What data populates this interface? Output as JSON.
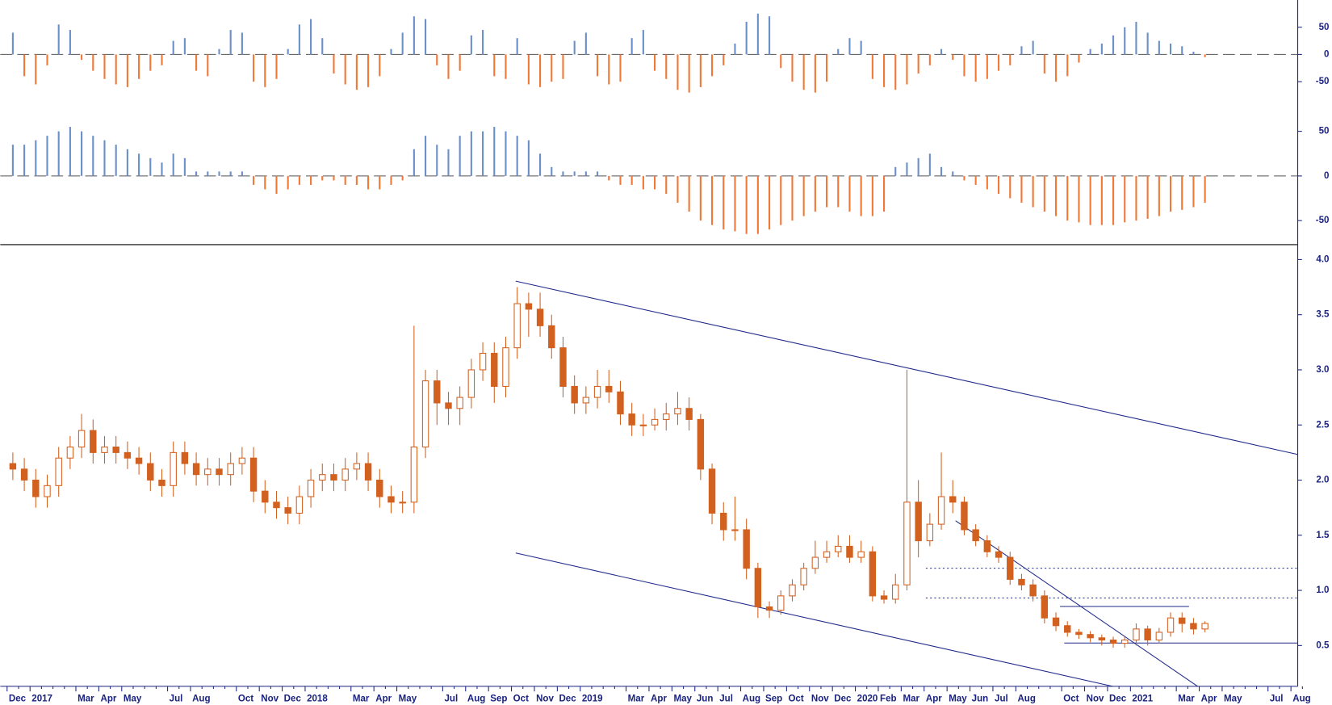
{
  "chart_data": [
    {
      "type": "candlestick",
      "color": "#d2601e",
      "categories": [
        "Dec",
        null,
        "2017",
        null,
        null,
        null,
        "Mar",
        null,
        "Apr",
        null,
        "May",
        null,
        null,
        null,
        "Jul",
        null,
        "Aug",
        null,
        null,
        null,
        "Oct",
        null,
        "Nov",
        null,
        "Dec",
        null,
        "2018",
        null,
        null,
        null,
        "Mar",
        null,
        "Apr",
        null,
        "May",
        null,
        null,
        null,
        "Jul",
        null,
        "Aug",
        null,
        "Sep",
        null,
        "Oct",
        null,
        "Nov",
        null,
        "Dec",
        null,
        "2019",
        null,
        null,
        null,
        "Mar",
        null,
        "Apr",
        null,
        "May",
        null,
        "Jun",
        null,
        "Jul",
        null,
        "Aug",
        null,
        "Sep",
        null,
        "Oct",
        null,
        "Nov",
        null,
        "Dec",
        null,
        "2020",
        null,
        "Feb",
        null,
        "Mar",
        null,
        "Apr",
        null,
        "May",
        null,
        "Jun",
        null,
        "Jul",
        null,
        "Aug",
        null,
        null,
        null,
        "Oct",
        null,
        "Nov",
        null,
        "Dec",
        null,
        "2021",
        null,
        null,
        null,
        "Mar",
        null,
        "Apr",
        null,
        "May",
        null,
        null,
        null,
        "Jul",
        null,
        "Aug",
        null
      ],
      "open": [
        2.15,
        2.1,
        2.0,
        1.85,
        1.95,
        2.2,
        2.3,
        2.45,
        2.25,
        2.3,
        2.25,
        2.2,
        2.15,
        2.0,
        1.95,
        2.25,
        2.15,
        2.05,
        2.1,
        2.05,
        2.15,
        2.2,
        1.9,
        1.8,
        1.75,
        1.7,
        1.85,
        2.0,
        2.05,
        2.0,
        2.1,
        2.15,
        2.0,
        1.85,
        1.8,
        1.8,
        2.3,
        2.9,
        2.7,
        2.65,
        2.75,
        3.0,
        3.15,
        2.85,
        3.2,
        3.6,
        3.55,
        3.4,
        3.2,
        2.85,
        2.7,
        2.75,
        2.85,
        2.8,
        2.6,
        2.5,
        2.5,
        2.55,
        2.6,
        2.65,
        2.55,
        2.1,
        1.7,
        1.55,
        1.55,
        1.2,
        0.85,
        0.82,
        0.95,
        1.05,
        1.2,
        1.3,
        1.35,
        1.4,
        1.3,
        1.35,
        0.95,
        0.92,
        1.05,
        1.8,
        1.45,
        1.6,
        1.85,
        1.8,
        1.55,
        1.45,
        1.35,
        1.3,
        1.1,
        1.05,
        0.95,
        0.75,
        0.68,
        0.62,
        0.6,
        0.57,
        0.55,
        0.52,
        0.55,
        0.65,
        0.55,
        0.62,
        0.75,
        0.7,
        0.65,
        null,
        null,
        null,
        null,
        null,
        null,
        null,
        null,
        null
      ],
      "high": [
        2.25,
        2.2,
        2.1,
        2.05,
        2.3,
        2.4,
        2.6,
        2.55,
        2.4,
        2.4,
        2.35,
        2.3,
        2.25,
        2.1,
        2.35,
        2.35,
        2.25,
        2.2,
        2.2,
        2.25,
        2.3,
        2.3,
        2.0,
        1.9,
        1.85,
        1.95,
        2.1,
        2.15,
        2.15,
        2.2,
        2.25,
        2.25,
        2.1,
        1.95,
        1.9,
        3.4,
        3.0,
        3.0,
        2.8,
        2.85,
        3.1,
        3.25,
        3.25,
        3.3,
        3.75,
        3.7,
        3.7,
        3.5,
        3.3,
        2.95,
        2.85,
        3.0,
        3.0,
        2.9,
        2.7,
        2.6,
        2.65,
        2.7,
        2.8,
        2.75,
        2.6,
        2.15,
        1.8,
        1.85,
        1.65,
        1.25,
        0.9,
        1.0,
        1.1,
        1.25,
        1.45,
        1.45,
        1.5,
        1.5,
        1.45,
        1.4,
        1.0,
        1.15,
        3.0,
        2.0,
        1.7,
        2.25,
        2.0,
        1.85,
        1.6,
        1.5,
        1.4,
        1.35,
        1.15,
        1.1,
        1.0,
        0.8,
        0.72,
        0.65,
        0.63,
        0.6,
        0.58,
        0.58,
        0.7,
        0.68,
        0.66,
        0.8,
        0.8,
        0.75,
        0.72,
        null,
        null,
        null,
        null,
        null,
        null,
        null,
        null,
        null
      ],
      "low": [
        2.0,
        1.9,
        1.75,
        1.75,
        1.85,
        2.1,
        2.2,
        2.15,
        2.15,
        2.15,
        2.1,
        2.05,
        1.9,
        1.85,
        1.85,
        2.05,
        1.95,
        1.95,
        1.95,
        1.95,
        2.05,
        1.8,
        1.7,
        1.65,
        1.6,
        1.6,
        1.75,
        1.9,
        1.9,
        1.9,
        2.0,
        1.9,
        1.75,
        1.7,
        1.7,
        1.7,
        2.2,
        2.5,
        2.5,
        2.5,
        2.65,
        2.9,
        2.7,
        2.75,
        3.1,
        3.3,
        3.3,
        3.1,
        2.75,
        2.6,
        2.6,
        2.65,
        2.7,
        2.5,
        2.4,
        2.4,
        2.45,
        2.45,
        2.5,
        2.45,
        2.0,
        1.6,
        1.45,
        1.45,
        1.1,
        0.75,
        0.75,
        0.78,
        0.9,
        1.0,
        1.15,
        1.25,
        1.3,
        1.25,
        1.25,
        0.9,
        0.88,
        0.88,
        1.0,
        1.3,
        1.4,
        1.55,
        1.7,
        1.5,
        1.4,
        1.3,
        1.25,
        1.05,
        1.0,
        0.9,
        0.7,
        0.63,
        0.58,
        0.56,
        0.53,
        0.5,
        0.48,
        0.48,
        0.5,
        0.5,
        0.52,
        0.58,
        0.62,
        0.6,
        0.62,
        null,
        null,
        null,
        null,
        null,
        null,
        null,
        null,
        null
      ],
      "close": [
        2.1,
        2.0,
        1.85,
        1.95,
        2.2,
        2.3,
        2.45,
        2.25,
        2.3,
        2.25,
        2.2,
        2.15,
        2.0,
        1.95,
        2.25,
        2.15,
        2.05,
        2.1,
        2.05,
        2.15,
        2.2,
        1.9,
        1.8,
        1.75,
        1.7,
        1.85,
        2.0,
        2.05,
        2.0,
        2.1,
        2.15,
        2.0,
        1.85,
        1.8,
        1.8,
        2.3,
        2.9,
        2.7,
        2.65,
        2.75,
        3.0,
        3.15,
        2.85,
        3.2,
        3.6,
        3.55,
        3.4,
        3.2,
        2.85,
        2.7,
        2.75,
        2.85,
        2.8,
        2.6,
        2.5,
        2.5,
        2.55,
        2.6,
        2.65,
        2.55,
        2.1,
        1.7,
        1.55,
        1.55,
        1.2,
        0.85,
        0.82,
        0.95,
        1.05,
        1.2,
        1.3,
        1.35,
        1.4,
        1.3,
        1.35,
        0.95,
        0.92,
        1.05,
        1.8,
        1.45,
        1.6,
        1.85,
        1.8,
        1.55,
        1.45,
        1.35,
        1.3,
        1.1,
        1.05,
        0.95,
        0.75,
        0.68,
        0.62,
        0.6,
        0.57,
        0.55,
        0.52,
        0.55,
        0.65,
        0.55,
        0.62,
        0.75,
        0.7,
        0.65,
        0.7,
        null,
        null,
        null,
        null,
        null,
        null,
        null,
        null,
        null
      ],
      "ylim": [
        0.13,
        4.12
      ],
      "yticks": [
        0.5,
        {
          "value": 1,
          "label": "1.0"
        },
        1.5,
        {
          "value": 2,
          "label": "2.0"
        },
        2.5,
        {
          "value": 3,
          "label": "3.0"
        },
        3.5,
        {
          "value": 4,
          "label": "4.0"
        }
      ]
    },
    {
      "type": "bar",
      "positive_color": "#6b8fc9",
      "negative_color": "#f07838",
      "values": [
        40,
        -40,
        -55,
        -20,
        55,
        45,
        -10,
        -30,
        -45,
        -55,
        -60,
        -45,
        -30,
        -20,
        25,
        30,
        -30,
        -40,
        10,
        45,
        40,
        -50,
        -60,
        -45,
        10,
        55,
        65,
        30,
        -35,
        -55,
        -65,
        -60,
        -40,
        10,
        40,
        70,
        65,
        -20,
        -45,
        -30,
        35,
        45,
        -40,
        -45,
        30,
        -55,
        -60,
        -50,
        -45,
        25,
        40,
        -40,
        -55,
        -50,
        30,
        45,
        -30,
        -45,
        -65,
        -70,
        -60,
        -40,
        -20,
        20,
        60,
        75,
        70,
        -25,
        -50,
        -65,
        -70,
        -50,
        10,
        30,
        25,
        -45,
        -60,
        -65,
        -55,
        -35,
        -20,
        10,
        -10,
        -40,
        -50,
        -45,
        -30,
        -20,
        15,
        25,
        -35,
        -50,
        -40,
        -15,
        10,
        20,
        35,
        50,
        60,
        40,
        25,
        20,
        15,
        5,
        -5,
        null,
        null,
        null,
        null,
        null,
        null,
        null,
        null,
        null
      ],
      "ylim": [
        -120,
        100
      ],
      "yticks": [
        50,
        0,
        -50
      ]
    },
    {
      "type": "bar",
      "positive_color": "#6b8fc9",
      "negative_color": "#f07838",
      "values": [
        35,
        35,
        40,
        45,
        50,
        55,
        50,
        45,
        40,
        35,
        30,
        25,
        20,
        15,
        25,
        20,
        5,
        5,
        5,
        5,
        5,
        -10,
        -15,
        -20,
        -15,
        -10,
        -10,
        -5,
        -5,
        -10,
        -10,
        -15,
        -15,
        -10,
        -5,
        30,
        45,
        35,
        30,
        45,
        50,
        50,
        55,
        50,
        45,
        40,
        25,
        10,
        5,
        5,
        5,
        5,
        -5,
        -10,
        -10,
        -15,
        -15,
        -20,
        -30,
        -40,
        -50,
        -55,
        -60,
        -62,
        -65,
        -65,
        -60,
        -55,
        -50,
        -45,
        -40,
        -35,
        -35,
        -40,
        -45,
        -45,
        -40,
        10,
        15,
        20,
        25,
        10,
        5,
        -5,
        -10,
        -15,
        -20,
        -25,
        -30,
        -35,
        -40,
        -45,
        -50,
        -52,
        -55,
        -55,
        -55,
        -52,
        -50,
        -48,
        -45,
        -40,
        -38,
        -35,
        -30,
        null,
        null,
        null,
        null,
        null,
        null,
        null,
        null,
        null
      ],
      "ylim": [
        -76,
        62
      ],
      "yticks": [
        50,
        0,
        -50
      ]
    }
  ]
}
